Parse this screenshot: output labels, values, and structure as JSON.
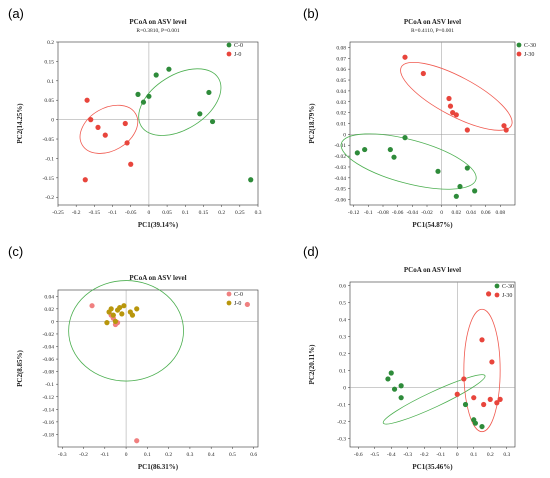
{
  "colors": {
    "green": "#2e8b3a",
    "red": "#e8453c",
    "pink": "#f08080",
    "gold": "#b8960c",
    "ellipse_green": "#4caf50",
    "ellipse_red": "#f05a50"
  },
  "chart_data": [
    {
      "panel": "(a)",
      "type": "scatter",
      "title": "PCoA on ASV level",
      "subtitle": "R=0.3810, P=0.001",
      "xlabel": "PC1(39.14%)",
      "ylabel": "PC2(14.25%)",
      "xlim": [
        -0.25,
        0.3
      ],
      "ylim": [
        -0.22,
        0.2
      ],
      "xticks": [
        -0.25,
        -0.2,
        -0.15,
        -0.1,
        -0.05,
        0,
        0.05,
        0.1,
        0.15,
        0.2,
        0.25,
        0.3
      ],
      "xtick_labels": [
        "-0.25",
        "-0.2",
        "-0.15",
        "-0.1",
        "-0.05",
        "0",
        "0.05",
        "0.1",
        "0.15",
        "0.2",
        "0.25",
        "0.3"
      ],
      "yticks": [
        -0.2,
        -0.15,
        -0.1,
        -0.05,
        0,
        0.05,
        0.1,
        0.15,
        0.2
      ],
      "ytick_labels": [
        "-0.2",
        "-0.15",
        "-0.1",
        "-0.05",
        "0",
        "0.05",
        "0.1",
        "0.15",
        "0.2"
      ],
      "legend": "top-right",
      "series": [
        {
          "name": "C-0",
          "color": "#2e8b3a",
          "points": [
            [
              -0.03,
              0.065
            ],
            [
              -0.015,
              0.045
            ],
            [
              0,
              0.06
            ],
            [
              0.02,
              0.115
            ],
            [
              0.055,
              0.13
            ],
            [
              0.14,
              0.015
            ],
            [
              0.165,
              0.07
            ],
            [
              0.175,
              -0.005
            ],
            [
              0.28,
              -0.155
            ]
          ],
          "ellipse": {
            "cx": 0.085,
            "cy": 0.045,
            "rx": 0.125,
            "ry": 0.07,
            "angle": -32
          }
        },
        {
          "name": "J-0",
          "color": "#e8453c",
          "points": [
            [
              -0.175,
              -0.155
            ],
            [
              -0.17,
              0.05
            ],
            [
              -0.16,
              0.0
            ],
            [
              -0.14,
              -0.02
            ],
            [
              -0.12,
              -0.04
            ],
            [
              -0.065,
              -0.01
            ],
            [
              -0.06,
              -0.06
            ],
            [
              -0.05,
              -0.115
            ]
          ],
          "ellipse": {
            "cx": -0.11,
            "cy": -0.025,
            "rx": 0.085,
            "ry": 0.055,
            "angle": -30
          }
        }
      ]
    },
    {
      "panel": "(b)",
      "type": "scatter",
      "title": "PCoA on ASV level",
      "subtitle": "R=0.4110, P=0.001",
      "xlabel": "PC1(54.87%)",
      "ylabel": "PC2(18.79%)",
      "xlim": [
        -0.125,
        0.1
      ],
      "ylim": [
        -0.065,
        0.085
      ],
      "xticks": [
        -0.12,
        -0.1,
        -0.08,
        -0.06,
        -0.04,
        -0.02,
        0,
        0.02,
        0.04,
        0.06,
        0.08
      ],
      "xtick_labels": [
        "-0.12",
        "-0.1",
        "-0.08",
        "-0.06",
        "-0.04",
        "-0.02",
        "0",
        "0.02",
        "0.04",
        "0.06",
        "0.08"
      ],
      "yticks": [
        -0.06,
        -0.05,
        -0.04,
        -0.03,
        -0.02,
        -0.01,
        0,
        0.01,
        0.02,
        0.03,
        0.04,
        0.05,
        0.06,
        0.07,
        0.08
      ],
      "ytick_labels": [
        "-0.06",
        "-0.05",
        "-0.04",
        "-0.03",
        "-0.02",
        "-0.01",
        "0",
        "0.01",
        "0.02",
        "0.03",
        "0.04",
        "0.05",
        "0.06",
        "0.07",
        "0.08"
      ],
      "legend": "top-right",
      "series": [
        {
          "name": "C-30",
          "color": "#2e8b3a",
          "points": [
            [
              -0.115,
              -0.017
            ],
            [
              -0.105,
              -0.014
            ],
            [
              -0.07,
              -0.014
            ],
            [
              -0.065,
              -0.021
            ],
            [
              -0.05,
              -0.003
            ],
            [
              -0.005,
              -0.034
            ],
            [
              0.02,
              -0.057
            ],
            [
              0.025,
              -0.048
            ],
            [
              0.035,
              -0.031
            ],
            [
              0.045,
              -0.052
            ]
          ],
          "ellipse": {
            "cx": -0.045,
            "cy": -0.025,
            "rx": 0.095,
            "ry": 0.02,
            "angle": 15
          }
        },
        {
          "name": "J-30",
          "color": "#e8453c",
          "points": [
            [
              -0.05,
              0.071
            ],
            [
              -0.025,
              0.056
            ],
            [
              0.01,
              0.033
            ],
            [
              0.012,
              0.026
            ],
            [
              0.015,
              0.02
            ],
            [
              0.02,
              0.018
            ],
            [
              0.035,
              0.004
            ],
            [
              0.085,
              0.008
            ],
            [
              0.088,
              0.004
            ]
          ],
          "ellipse": {
            "cx": 0.02,
            "cy": 0.035,
            "rx": 0.085,
            "ry": 0.018,
            "angle": 28
          }
        }
      ]
    },
    {
      "panel": "(c)",
      "type": "scatter",
      "title": "PCoA on ASV level",
      "xlabel": "PC1(86.31%)",
      "ylabel": "PC2(8.85%)",
      "xlim": [
        -0.32,
        0.62
      ],
      "ylim": [
        -0.2,
        0.05
      ],
      "xticks": [
        -0.3,
        -0.2,
        -0.1,
        0,
        0.1,
        0.2,
        0.3,
        0.4,
        0.5,
        0.6
      ],
      "xtick_labels": [
        "-0.3",
        "-0.2",
        "-0.1",
        "0",
        "0.1",
        "0.2",
        "0.3",
        "0.4",
        "0.5",
        "0.6"
      ],
      "yticks": [
        -0.18,
        -0.16,
        -0.14,
        -0.12,
        -0.1,
        -0.08,
        -0.06,
        -0.04,
        -0.02,
        0,
        0.02,
        0.04
      ],
      "ytick_labels": [
        "-0.18",
        "-0.16",
        "-0.14",
        "-0.12",
        "-0.1",
        "-0.08",
        "-0.06",
        "-0.04",
        "-0.02",
        "0",
        "0.02",
        "0.04"
      ],
      "legend": "top-right",
      "series": [
        {
          "name": "C-0",
          "color": "#f08080",
          "points": [
            [
              -0.16,
              0.025
            ],
            [
              -0.07,
              0.01
            ],
            [
              -0.06,
              0.005
            ],
            [
              -0.05,
              -0.005
            ],
            [
              -0.04,
              -0.002
            ],
            [
              0.05,
              -0.19
            ],
            [
              0.57,
              0.027
            ]
          ],
          "ellipse": {
            "cx": 0.0,
            "cy": -0.015,
            "rx": 0.27,
            "ry": 0.08,
            "angle": 0
          }
        },
        {
          "name": "J-0",
          "color": "#b8960c",
          "points": [
            [
              -0.09,
              -0.002
            ],
            [
              -0.08,
              0.015
            ],
            [
              -0.07,
              0.02
            ],
            [
              -0.06,
              0.01
            ],
            [
              -0.05,
              0.0
            ],
            [
              -0.04,
              0.018
            ],
            [
              -0.03,
              0.022
            ],
            [
              -0.01,
              0.025
            ],
            [
              0.02,
              0.015
            ],
            [
              0.03,
              0.01
            ],
            [
              0.05,
              0.02
            ],
            [
              -0.02,
              0.012
            ]
          ]
        }
      ]
    },
    {
      "panel": "(d)",
      "type": "scatter",
      "title": "PCoA on ASV level",
      "xlabel": "PC1(35.46%)",
      "ylabel": "PC2(20.11%)",
      "xlim": [
        -0.65,
        0.35
      ],
      "ylim": [
        -0.35,
        0.62
      ],
      "xticks": [
        -0.6,
        -0.5,
        -0.4,
        -0.3,
        -0.2,
        -0.1,
        0,
        0.1,
        0.2,
        0.3
      ],
      "xtick_labels": [
        "-0.6",
        "-0.5",
        "-0.4",
        "-0.3",
        "-0.2",
        "-0.1",
        "0",
        "0.1",
        "0.2",
        "0.3"
      ],
      "yticks": [
        -0.3,
        -0.2,
        -0.1,
        0,
        0.1,
        0.2,
        0.3,
        0.4,
        0.5,
        0.6
      ],
      "ytick_labels": [
        "-0.3",
        "-0.2",
        "-0.1",
        "0",
        "0.1",
        "0.2",
        "0.3",
        "0.4",
        "0.5",
        "0.6"
      ],
      "legend": "top-right",
      "series": [
        {
          "name": "C-30",
          "color": "#2e8b3a",
          "points": [
            [
              -0.42,
              0.05
            ],
            [
              -0.4,
              0.085
            ],
            [
              -0.38,
              -0.01
            ],
            [
              -0.34,
              0.01
            ],
            [
              -0.34,
              -0.06
            ],
            [
              0.05,
              -0.1
            ],
            [
              0.1,
              -0.19
            ],
            [
              0.11,
              -0.21
            ],
            [
              0.15,
              -0.23
            ]
          ],
          "ellipse": {
            "cx": -0.14,
            "cy": -0.07,
            "rx": 0.34,
            "ry": 0.045,
            "angle": -25
          }
        },
        {
          "name": "J-30",
          "color": "#e8453c",
          "points": [
            [
              0.0,
              -0.04
            ],
            [
              0.04,
              0.05
            ],
            [
              0.1,
              -0.06
            ],
            [
              0.15,
              0.28
            ],
            [
              0.16,
              -0.1
            ],
            [
              0.19,
              0.55
            ],
            [
              0.2,
              -0.07
            ],
            [
              0.21,
              0.15
            ],
            [
              0.24,
              -0.09
            ],
            [
              0.26,
              -0.07
            ]
          ],
          "ellipse": {
            "cx": 0.15,
            "cy": 0.1,
            "rx": 0.11,
            "ry": 0.36,
            "angle": 0
          }
        }
      ]
    }
  ]
}
